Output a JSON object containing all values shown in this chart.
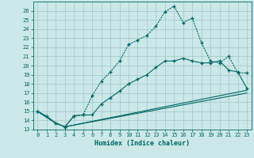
{
  "title": "",
  "xlabel": "Humidex (Indice chaleur)",
  "background_color": "#cce8e8",
  "grid_color": "#aacccc",
  "line_color": "#006666",
  "xlim": [
    -0.5,
    23.5
  ],
  "ylim": [
    13,
    27
  ],
  "yticks": [
    13,
    14,
    15,
    16,
    17,
    18,
    19,
    20,
    21,
    22,
    23,
    24,
    25,
    26
  ],
  "xticks": [
    0,
    1,
    2,
    3,
    4,
    5,
    6,
    7,
    8,
    9,
    10,
    11,
    12,
    13,
    14,
    15,
    16,
    17,
    18,
    19,
    20,
    21,
    22,
    23
  ],
  "line1_x": [
    0,
    1,
    2,
    3,
    4,
    5,
    6,
    7,
    8,
    9,
    10,
    11,
    12,
    13,
    14,
    15,
    16,
    17,
    18,
    19,
    20,
    21,
    22,
    23
  ],
  "line1_y": [
    15,
    14.5,
    13.7,
    13.3,
    14.5,
    14.6,
    16.7,
    18.3,
    19.3,
    20.5,
    22.3,
    22.8,
    23.3,
    24.3,
    25.9,
    26.5,
    24.7,
    25.2,
    22.5,
    20.5,
    20.3,
    21.0,
    19.2,
    19.2
  ],
  "line2_x": [
    0,
    2,
    3,
    4,
    5,
    6,
    7,
    8,
    9,
    10,
    11,
    12,
    13,
    14,
    15,
    16,
    17,
    18,
    19,
    20,
    21,
    22,
    23
  ],
  "line2_y": [
    15,
    13.7,
    13.3,
    14.5,
    14.6,
    14.6,
    15.8,
    16.5,
    17.2,
    18.0,
    18.5,
    19.0,
    19.8,
    20.5,
    20.5,
    20.8,
    20.5,
    20.3,
    20.3,
    20.5,
    19.5,
    19.3,
    17.5
  ],
  "line3_x": [
    0,
    2,
    3,
    23
  ],
  "line3_y": [
    15,
    13.7,
    13.3,
    17.3
  ],
  "line4_x": [
    0,
    2,
    3,
    23
  ],
  "line4_y": [
    15,
    13.7,
    13.3,
    17.0
  ]
}
